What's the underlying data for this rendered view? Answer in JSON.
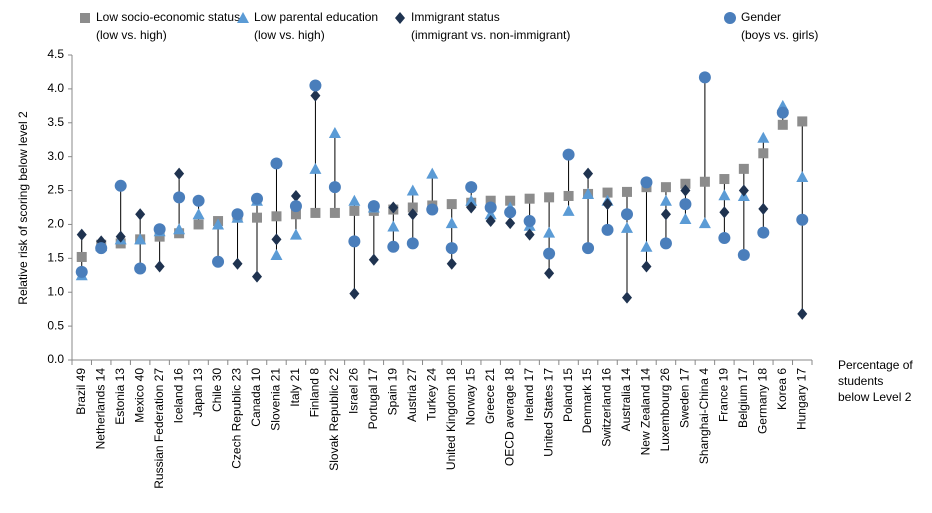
{
  "chart_data": {
    "type": "dot-range",
    "y_label": "Relative risk of scoring below level 2",
    "x_note": [
      "Percentage of",
      "students",
      "below Level 2"
    ],
    "categories": [
      "Brazil  49",
      "Netherlands  14",
      "Estonia  13",
      "Mexico  40",
      "Russian Federation  27",
      "Iceland  16",
      "Japan  13",
      "Chile  30",
      "Czech Republic  23",
      "Canada  10",
      "Slovenia  21",
      "Italy  21",
      "Finland   8",
      "Slovak Republic  22",
      "Israel  26",
      "Portugal  17",
      "Spain  19",
      "Austria  27",
      "Turkey  24",
      "United Kingdom  18",
      "Norway  15",
      "Greece  21",
      "OECD average  18",
      "Ireland  17",
      "United States  17",
      "Poland  15",
      "Denmark  15",
      "Switzerland  16",
      "Australia  14",
      "New Zealand  14",
      "Luxembourg  26",
      "Sweden  17",
      "Shanghai-China  4",
      "France  19",
      "Belgium  17",
      "Germany  18",
      "Korea   6",
      "Hungary  17"
    ],
    "series": [
      {
        "name": "Low socio-economic status",
        "detail": "(low vs. high)",
        "marker": "square",
        "color": "#8c8c8c",
        "values": [
          1.52,
          1.7,
          1.72,
          1.78,
          1.82,
          1.87,
          2.0,
          2.05,
          2.1,
          2.1,
          2.12,
          2.15,
          2.17,
          2.17,
          2.2,
          2.2,
          2.22,
          2.25,
          2.28,
          2.3,
          2.32,
          2.35,
          2.35,
          2.38,
          2.4,
          2.42,
          2.45,
          2.47,
          2.48,
          2.55,
          2.55,
          2.6,
          2.63,
          2.67,
          2.82,
          3.05,
          3.47,
          3.52
        ]
      },
      {
        "name": "Low parental education",
        "detail": "(low vs. high)",
        "marker": "triangle",
        "color": "#5b9bd5",
        "values": [
          1.25,
          1.68,
          1.78,
          1.78,
          1.9,
          1.93,
          2.15,
          2.0,
          2.1,
          2.35,
          1.55,
          1.85,
          2.82,
          3.35,
          2.35,
          2.25,
          1.97,
          2.5,
          2.75,
          2.02,
          2.35,
          2.15,
          2.25,
          1.98,
          1.88,
          2.2,
          2.45,
          2.35,
          1.95,
          1.67,
          2.35,
          2.08,
          2.02,
          2.43,
          2.42,
          3.28,
          3.75,
          2.7
        ]
      },
      {
        "name": "Immigrant status",
        "detail": "(immigrant vs. non-immigrant)",
        "marker": "diamond",
        "color": "#1f3350",
        "values": [
          1.85,
          1.75,
          1.82,
          2.15,
          1.38,
          2.75,
          null,
          null,
          1.42,
          1.23,
          1.78,
          2.42,
          3.9,
          null,
          0.98,
          1.48,
          2.25,
          2.15,
          null,
          1.42,
          2.25,
          2.05,
          2.02,
          1.85,
          1.28,
          null,
          2.75,
          2.3,
          0.92,
          1.38,
          2.15,
          2.5,
          null,
          2.18,
          2.5,
          2.23,
          null,
          0.68
        ]
      },
      {
        "name": "Gender",
        "detail": "(boys vs. girls)",
        "marker": "circle",
        "color": "#4a7ebb",
        "values": [
          1.3,
          1.65,
          2.57,
          1.35,
          1.93,
          2.4,
          2.35,
          1.45,
          2.15,
          2.38,
          2.9,
          2.27,
          4.05,
          2.55,
          1.75,
          2.27,
          1.67,
          1.72,
          2.22,
          1.65,
          2.55,
          2.25,
          2.18,
          2.05,
          1.57,
          3.03,
          1.65,
          1.92,
          2.15,
          2.62,
          1.72,
          2.3,
          4.17,
          1.8,
          1.55,
          1.88,
          3.65,
          2.07
        ]
      }
    ],
    "ylim": [
      0,
      4.5
    ],
    "yticks": [
      {
        "value": 0,
        "label": "0.0"
      },
      0.5,
      {
        "value": 1,
        "label": "1.0"
      },
      1.5,
      {
        "value": 2,
        "label": "2.0"
      },
      2.5,
      {
        "value": 3,
        "label": "3.0"
      },
      3.5,
      {
        "value": 4,
        "label": "4.0"
      },
      4.5
    ],
    "grid": false
  }
}
